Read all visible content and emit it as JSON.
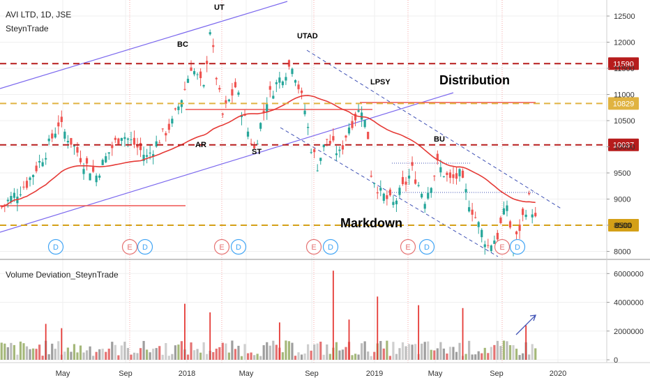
{
  "chart_data": [
    {
      "type": "candlestick",
      "title": "AVI LTD, 1D, JSE",
      "subtitle": "SteynTrade",
      "x_ticks": [
        "May",
        "Sep",
        "2018",
        "May",
        "Sep",
        "2019",
        "May",
        "Sep",
        "2020"
      ],
      "y_ticks": [
        8000,
        8500,
        9000,
        9500,
        10000,
        10500,
        11000,
        11500,
        12000,
        12500
      ],
      "ylim": [
        7700,
        12650
      ],
      "price_lines": [
        {
          "label": "11590",
          "value": 11590,
          "style": "dashed",
          "color": "#b71c1c"
        },
        {
          "label": "10829",
          "value": 10829,
          "style": "dashed",
          "color": "#e0b341"
        },
        {
          "label": "10037",
          "value": 10037,
          "style": "dashed",
          "color": "#b71c1c"
        },
        {
          "label": "8500",
          "value": 8500,
          "style": "dashed",
          "color": "#d4a017"
        }
      ],
      "annotations": [
        "UT",
        "BC",
        "UTAD",
        "LPSY",
        "AR",
        "ST",
        "BU",
        "Distribution",
        "Markdown"
      ],
      "events": [
        "D",
        "E",
        "D",
        "E",
        "D",
        "E",
        "D",
        "E",
        "D",
        "E",
        "D"
      ],
      "price_path": [
        [
          0,
          8850
        ],
        [
          8,
          9300
        ],
        [
          14,
          9900
        ],
        [
          18,
          10450
        ],
        [
          22,
          10100
        ],
        [
          26,
          9700
        ],
        [
          30,
          9450
        ],
        [
          34,
          9900
        ],
        [
          38,
          10250
        ],
        [
          42,
          10050
        ],
        [
          46,
          9800
        ],
        [
          50,
          10150
        ],
        [
          54,
          10450
        ],
        [
          58,
          11100
        ],
        [
          60,
          11550
        ],
        [
          64,
          11100
        ],
        [
          66,
          12250
        ],
        [
          68,
          11350
        ],
        [
          70,
          10600
        ],
        [
          74,
          11150
        ],
        [
          78,
          10300
        ],
        [
          80,
          9950
        ],
        [
          84,
          10900
        ],
        [
          88,
          11300
        ],
        [
          92,
          11600
        ],
        [
          94,
          11150
        ],
        [
          96,
          10700
        ],
        [
          98,
          10000
        ],
        [
          100,
          9650
        ],
        [
          103,
          10150
        ],
        [
          107,
          9850
        ],
        [
          110,
          10400
        ],
        [
          114,
          10750
        ],
        [
          116,
          10200
        ],
        [
          117,
          9500
        ],
        [
          120,
          9100
        ],
        [
          124,
          8900
        ],
        [
          127,
          9200
        ],
        [
          130,
          9550
        ],
        [
          134,
          9000
        ],
        [
          138,
          9650
        ],
        [
          142,
          9350
        ],
        [
          145,
          9450
        ],
        [
          148,
          8950
        ],
        [
          151,
          8500
        ],
        [
          154,
          8100
        ],
        [
          157,
          8300
        ],
        [
          160,
          8900
        ],
        [
          162,
          8050
        ],
        [
          165,
          8650
        ],
        [
          167,
          9000
        ],
        [
          169,
          8600
        ]
      ]
    },
    {
      "type": "bar",
      "title": "Volume Deviation_SteynTrade",
      "y_ticks": [
        0,
        2000000,
        4000000,
        6000000
      ],
      "y_tick_labels": [
        "0",
        "2000000",
        "4000000",
        "6000000"
      ],
      "ylim": [
        0,
        6500000
      ],
      "spikes": [
        {
          "x": 14,
          "value": 2500000
        },
        {
          "x": 19,
          "value": 2200000
        },
        {
          "x": 58,
          "value": 3900000
        },
        {
          "x": 66,
          "value": 3300000
        },
        {
          "x": 88,
          "value": 2600000
        },
        {
          "x": 105,
          "value": 6200000
        },
        {
          "x": 110,
          "value": 2800000
        },
        {
          "x": 119,
          "value": 4400000
        },
        {
          "x": 132,
          "value": 3800000
        },
        {
          "x": 146,
          "value": 3600000
        },
        {
          "x": 166,
          "value": 2400000
        }
      ]
    }
  ]
}
